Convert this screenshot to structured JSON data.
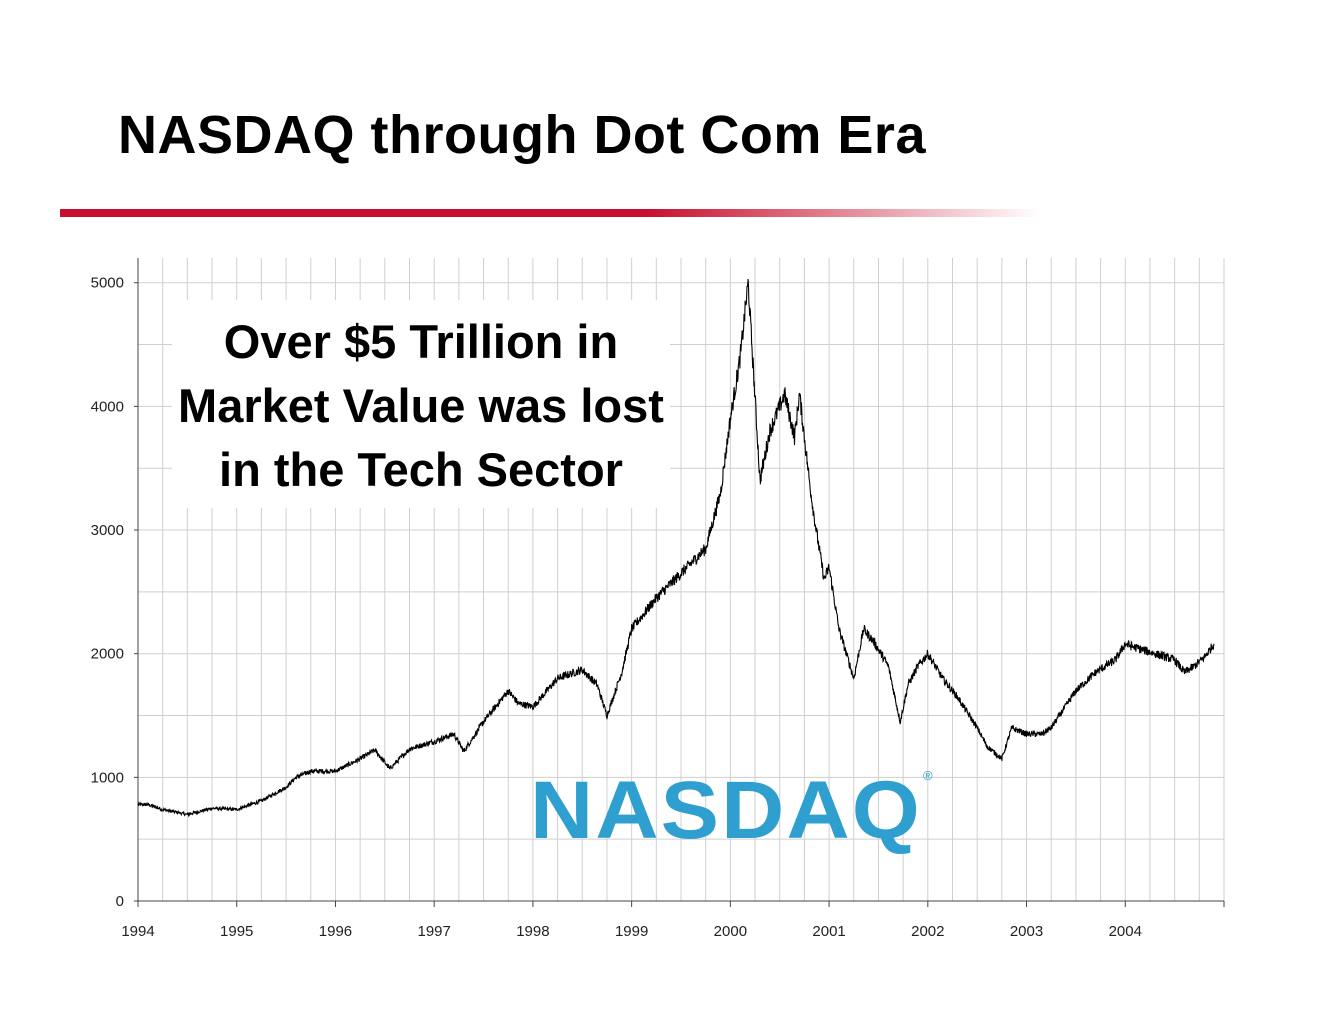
{
  "slide": {
    "title": "NASDAQ through Dot Com Era",
    "accent_color": "#c8102e"
  },
  "callout": {
    "lines": [
      "Over $5 Trillion in",
      "Market Value was lost",
      "in the Tech Sector"
    ]
  },
  "logo": {
    "text": "NASDAQ",
    "mark": "®",
    "color": "#2f9fcf"
  },
  "chart_data": {
    "type": "line",
    "grid": true,
    "line_color": "#000000",
    "xlim": [
      1994,
      2005
    ],
    "ylim": [
      0,
      5200
    ],
    "x_ticks": [
      "1994",
      "1995",
      "1996",
      "1997",
      "1998",
      "1999",
      "2000",
      "2001",
      "2002",
      "2003",
      "2004"
    ],
    "y_ticks": [
      "0",
      "1000",
      "2000",
      "3000",
      "4000",
      "5000"
    ],
    "series": [
      {
        "x": [
          1994.0,
          1994.1,
          1994.25,
          1994.5,
          1994.75,
          1995.0,
          1995.25,
          1995.5,
          1995.6,
          1995.75,
          1996.0,
          1996.25,
          1996.4,
          1996.55,
          1996.75,
          1997.0,
          1997.2,
          1997.3,
          1997.5,
          1997.75,
          1997.85,
          1998.0,
          1998.25,
          1998.5,
          1998.65,
          1998.75,
          1998.9,
          1999.0,
          1999.25,
          1999.5,
          1999.75,
          1999.9,
          2000.0,
          2000.1,
          2000.18,
          2000.3,
          2000.4,
          2000.5,
          2000.55,
          2000.65,
          2000.7,
          2000.8,
          2000.85,
          2000.95,
          2001.0,
          2001.1,
          2001.25,
          2001.35,
          2001.45,
          2001.6,
          2001.72,
          2001.8,
          2001.9,
          2002.0,
          2002.15,
          2002.3,
          2002.5,
          2002.6,
          2002.75,
          2002.85,
          2003.0,
          2003.15,
          2003.25,
          2003.5,
          2003.7,
          2003.9,
          2004.0,
          2004.1,
          2004.3,
          2004.5,
          2004.6,
          2004.7,
          2004.8,
          2004.9
        ],
        "y": [
          780,
          780,
          740,
          700,
          750,
          740,
          810,
          920,
          1000,
          1050,
          1050,
          1150,
          1220,
          1070,
          1230,
          1290,
          1350,
          1210,
          1450,
          1700,
          1600,
          1570,
          1800,
          1870,
          1750,
          1500,
          1850,
          2200,
          2450,
          2650,
          2850,
          3300,
          3900,
          4400,
          5000,
          3400,
          3800,
          4000,
          4100,
          3750,
          4100,
          3400,
          3100,
          2600,
          2700,
          2200,
          1800,
          2200,
          2100,
          1900,
          1450,
          1750,
          1900,
          2000,
          1800,
          1650,
          1400,
          1250,
          1150,
          1400,
          1350,
          1350,
          1400,
          1700,
          1850,
          1950,
          2080,
          2050,
          2000,
          1950,
          1850,
          1900,
          1970,
          2080
        ]
      }
    ]
  }
}
